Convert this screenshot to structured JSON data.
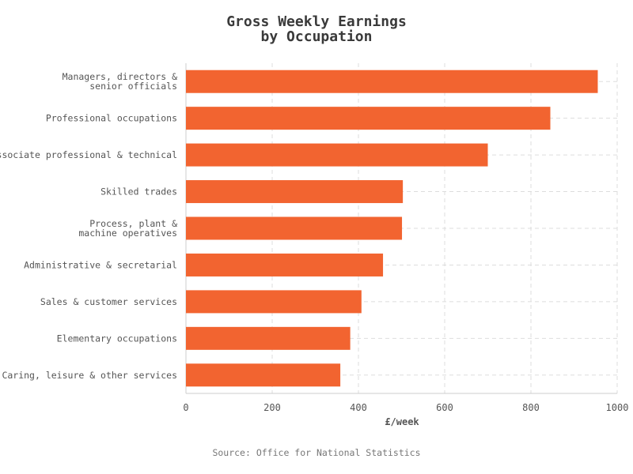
{
  "chart_data": {
    "type": "bar",
    "orientation": "horizontal",
    "title": [
      "Gross Weekly Earnings",
      "by Occupation"
    ],
    "xlabel": "£/week",
    "source": "Source: Office for National Statistics",
    "categories": [
      [
        "Managers, directors &",
        "senior officials"
      ],
      [
        "Professional occupations"
      ],
      [
        "Associate professional & technical"
      ],
      [
        "Skilled trades"
      ],
      [
        "Process, plant &",
        "machine operatives"
      ],
      [
        "Administrative & secretarial"
      ],
      [
        "Sales & customer services"
      ],
      [
        "Elementary occupations"
      ],
      [
        "Caring, leisure & other services"
      ]
    ],
    "values": [
      955,
      845,
      700,
      503,
      501,
      457,
      407,
      381,
      358
    ],
    "xlim": [
      0,
      1000
    ],
    "xticks": [
      0,
      200,
      400,
      600,
      800,
      1000
    ],
    "bar_color": "#f26430",
    "grid": true
  }
}
